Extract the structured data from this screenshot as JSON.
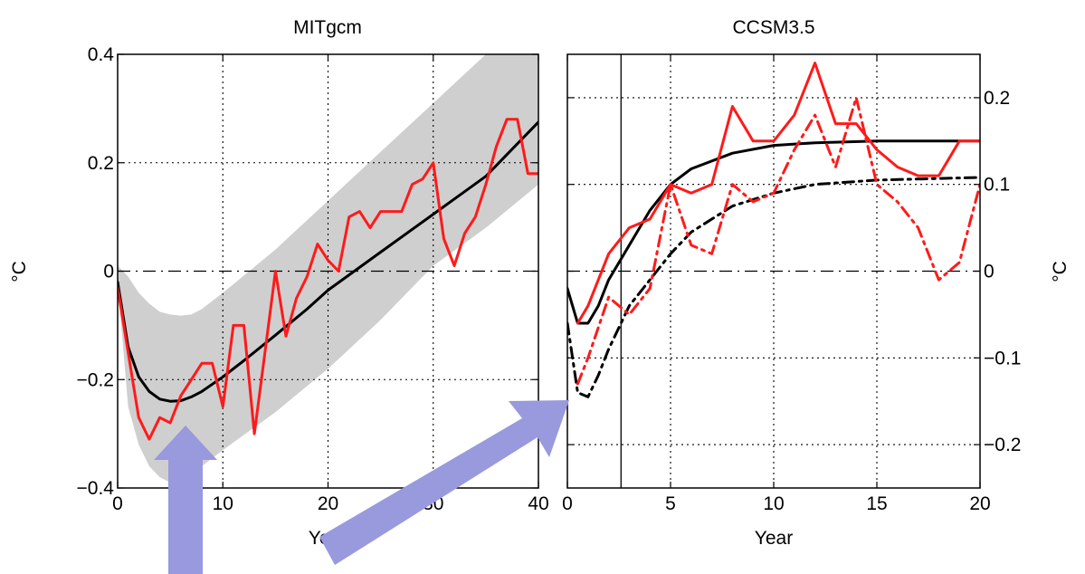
{
  "chart_data": [
    {
      "type": "line",
      "title": "MITgcm",
      "xlabel": "Year",
      "ylabel": "°C",
      "xlim": [
        0,
        40
      ],
      "ylim": [
        -0.4,
        0.4
      ],
      "xticks": [
        "0",
        "10",
        "20",
        "30",
        "40"
      ],
      "yticks": [
        "−0.4",
        "−0.2",
        "0",
        "0.2",
        "0.4"
      ],
      "grid": true,
      "shaded_band": {
        "x": [
          0,
          1,
          2,
          3,
          4,
          5,
          6,
          7,
          8,
          10,
          15,
          20,
          25,
          30,
          35,
          40
        ],
        "upper": [
          0.01,
          -0.01,
          -0.04,
          -0.06,
          -0.075,
          -0.08,
          -0.082,
          -0.08,
          -0.07,
          -0.04,
          0.04,
          0.13,
          0.22,
          0.31,
          0.4,
          0.47
        ],
        "lower": [
          -0.02,
          -0.25,
          -0.32,
          -0.36,
          -0.38,
          -0.39,
          -0.385,
          -0.375,
          -0.36,
          -0.33,
          -0.26,
          -0.18,
          -0.09,
          0.01,
          0.08,
          0.16
        ]
      },
      "series": [
        {
          "color": "#000000",
          "style": "solid",
          "x": [
            0,
            1,
            2,
            3,
            4,
            5,
            6,
            7,
            8,
            10,
            12,
            15,
            18,
            20,
            25,
            30,
            35,
            40
          ],
          "values": [
            -0.02,
            -0.14,
            -0.195,
            -0.222,
            -0.236,
            -0.24,
            -0.239,
            -0.232,
            -0.222,
            -0.195,
            -0.165,
            -0.118,
            -0.07,
            -0.035,
            0.035,
            0.105,
            0.175,
            0.275
          ]
        },
        {
          "color": "#ff1a1a",
          "style": "solid",
          "x": [
            0,
            1,
            2,
            3,
            4,
            5,
            6,
            7,
            8,
            9,
            10,
            11,
            12,
            13,
            14,
            15,
            16,
            17,
            18,
            19,
            20,
            21,
            22,
            23,
            24,
            25,
            26,
            27,
            28,
            29,
            30,
            31,
            32,
            33,
            34,
            35,
            36,
            37,
            38,
            39,
            40
          ],
          "values": [
            -0.03,
            -0.15,
            -0.27,
            -0.31,
            -0.27,
            -0.28,
            -0.23,
            -0.2,
            -0.17,
            -0.17,
            -0.25,
            -0.1,
            -0.1,
            -0.3,
            -0.15,
            0.0,
            -0.12,
            -0.05,
            -0.01,
            0.05,
            0.02,
            0.0,
            0.1,
            0.11,
            0.08,
            0.11,
            0.11,
            0.11,
            0.16,
            0.17,
            0.2,
            0.06,
            0.01,
            0.07,
            0.1,
            0.16,
            0.23,
            0.28,
            0.28,
            0.18,
            0.18
          ]
        }
      ]
    },
    {
      "type": "line",
      "title": "CCSM3.5",
      "xlabel": "Year",
      "ylabel": "°C",
      "xlim": [
        0,
        20
      ],
      "ylim": [
        -0.25,
        0.25
      ],
      "xticks": [
        "0",
        "5",
        "10",
        "15",
        "20"
      ],
      "yticks": [
        "−0.2",
        "−0.1",
        "0",
        "0.1",
        "0.2"
      ],
      "yaxis_side": "right",
      "grid": true,
      "vertical_line_x": 2.6,
      "series": [
        {
          "color": "#000000",
          "style": "solid",
          "x": [
            0,
            0.5,
            1,
            1.5,
            2,
            3,
            4,
            5,
            6,
            8,
            10,
            12,
            15,
            20
          ],
          "values": [
            -0.02,
            -0.06,
            -0.06,
            -0.04,
            -0.01,
            0.03,
            0.07,
            0.1,
            0.118,
            0.136,
            0.145,
            0.148,
            0.15,
            0.15
          ]
        },
        {
          "color": "#000000",
          "style": "dashdot",
          "x": [
            0,
            0.5,
            1,
            1.5,
            2,
            3,
            4,
            5,
            6,
            8,
            10,
            12,
            15,
            20
          ],
          "values": [
            -0.06,
            -0.14,
            -0.145,
            -0.12,
            -0.09,
            -0.04,
            -0.01,
            0.02,
            0.045,
            0.075,
            0.09,
            0.1,
            0.105,
            0.108
          ]
        },
        {
          "color": "#ff1a1a",
          "style": "solid",
          "x": [
            0.5,
            1,
            2,
            3,
            4,
            5,
            6,
            7,
            8,
            9,
            10,
            11,
            12,
            13,
            14,
            15,
            16,
            17,
            18,
            19,
            20
          ],
          "values": [
            -0.06,
            -0.04,
            0.02,
            0.05,
            0.06,
            0.1,
            0.09,
            0.1,
            0.19,
            0.15,
            0.15,
            0.18,
            0.24,
            0.17,
            0.17,
            0.14,
            0.12,
            0.11,
            0.11,
            0.15,
            0.15
          ]
        },
        {
          "color": "#ff1a1a",
          "style": "dashdot",
          "x": [
            0.5,
            1,
            2,
            3,
            4,
            5,
            6,
            7,
            8,
            9,
            10,
            11,
            12,
            13,
            14,
            15,
            16,
            17,
            18,
            19,
            20
          ],
          "values": [
            -0.13,
            -0.1,
            -0.03,
            -0.05,
            -0.02,
            0.1,
            0.03,
            0.02,
            0.1,
            0.08,
            0.09,
            0.14,
            0.18,
            0.12,
            0.2,
            0.1,
            0.08,
            0.05,
            -0.01,
            0.01,
            0.1
          ]
        }
      ]
    }
  ],
  "annotations": {
    "arrow_color": "#9999dd",
    "arrows": [
      "arrow-up-icon",
      "arrow-diagonal-icon"
    ]
  }
}
